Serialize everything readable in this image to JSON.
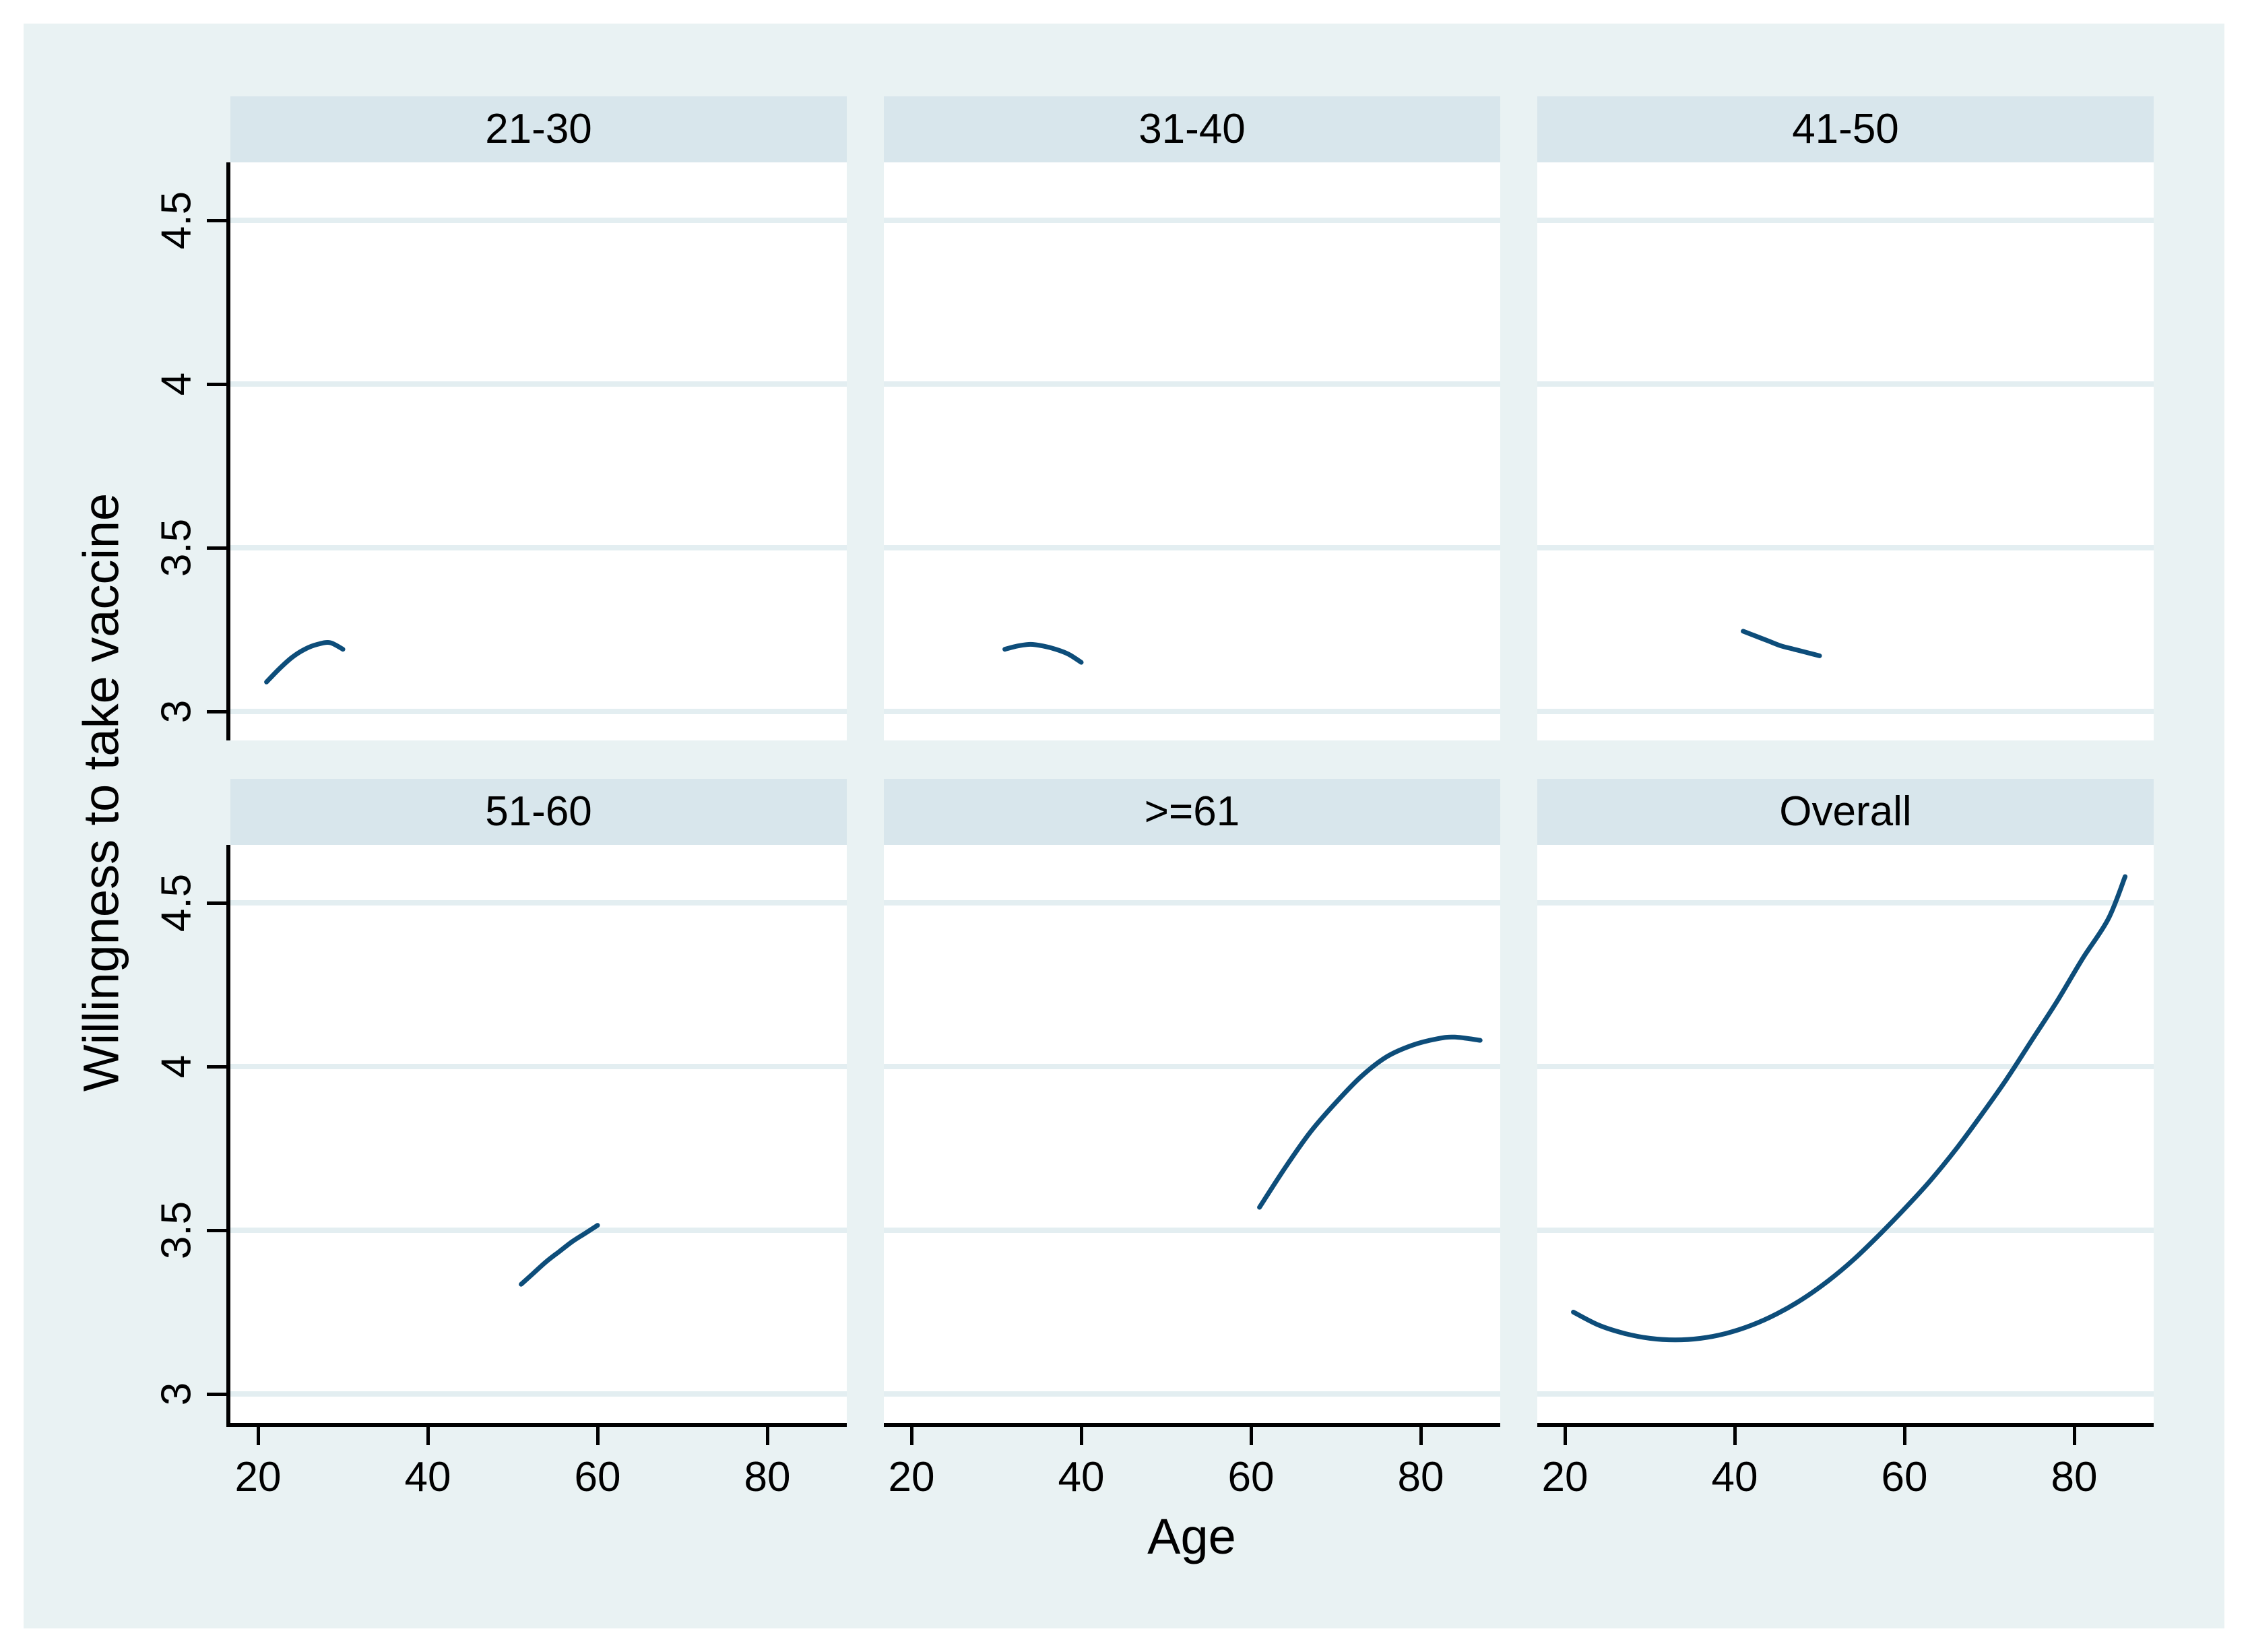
{
  "figure": {
    "xlabel": "Age",
    "ylabel": "Willingness to take vaccine",
    "colors": {
      "outer_background": "#e9f2f3",
      "facet_header_background": "#d8e6ec",
      "plot_background": "#ffffff",
      "gridline": "#e3eef1",
      "curve": "#0d4d7a",
      "axis": "#000000",
      "text": "#000000"
    }
  },
  "chart_data": {
    "type": "line",
    "layout": "faceted 2x3 grid (Stata by-graph), gridlines horizontal only, no legend",
    "title": "",
    "xlabel": "Age",
    "ylabel": "Willingness to take vaccine",
    "x": {
      "ticks": [
        20,
        40,
        60,
        80
      ],
      "tick_labels": [
        "20",
        "40",
        "60",
        "80"
      ],
      "range": [
        16.7,
        89.3
      ]
    },
    "y": {
      "ticks": [
        3,
        3.5,
        4,
        4.5
      ],
      "tick_labels": [
        "3",
        "3.5",
        "4",
        "4.5"
      ],
      "range": [
        2.91,
        4.68
      ]
    },
    "facets": [
      {
        "title": "21-30",
        "points": [
          [
            21,
            3.09
          ],
          [
            22.5,
            3.13
          ],
          [
            24,
            3.165
          ],
          [
            25.5,
            3.19
          ],
          [
            27,
            3.205
          ],
          [
            28.5,
            3.21
          ],
          [
            30,
            3.19
          ]
        ]
      },
      {
        "title": "31-40",
        "points": [
          [
            31,
            3.19
          ],
          [
            32.5,
            3.2
          ],
          [
            34,
            3.205
          ],
          [
            35.5,
            3.2
          ],
          [
            37,
            3.19
          ],
          [
            38.5,
            3.175
          ],
          [
            40,
            3.15
          ]
        ]
      },
      {
        "title": "41-50",
        "points": [
          [
            41,
            3.245
          ],
          [
            42.5,
            3.23
          ],
          [
            44,
            3.215
          ],
          [
            45.5,
            3.2
          ],
          [
            47,
            3.19
          ],
          [
            48.5,
            3.18
          ],
          [
            50,
            3.17
          ]
        ]
      },
      {
        "title": "51-60",
        "points": [
          [
            51,
            3.335
          ],
          [
            52.5,
            3.37
          ],
          [
            54,
            3.405
          ],
          [
            55.5,
            3.435
          ],
          [
            57,
            3.465
          ],
          [
            58.5,
            3.49
          ],
          [
            60,
            3.515
          ]
        ]
      },
      {
        "title": ">=61",
        "points": [
          [
            61,
            3.57
          ],
          [
            64,
            3.69
          ],
          [
            67,
            3.8
          ],
          [
            70,
            3.89
          ],
          [
            73,
            3.97
          ],
          [
            76,
            4.03
          ],
          [
            79,
            4.065
          ],
          [
            82,
            4.085
          ],
          [
            84,
            4.09
          ],
          [
            87,
            4.08
          ]
        ]
      },
      {
        "title": "Overall",
        "points": [
          [
            21,
            3.25
          ],
          [
            24,
            3.21
          ],
          [
            27,
            3.185
          ],
          [
            30,
            3.17
          ],
          [
            33,
            3.165
          ],
          [
            36,
            3.17
          ],
          [
            39,
            3.185
          ],
          [
            42,
            3.21
          ],
          [
            45,
            3.245
          ],
          [
            48,
            3.29
          ],
          [
            51,
            3.345
          ],
          [
            54,
            3.41
          ],
          [
            57,
            3.485
          ],
          [
            60,
            3.565
          ],
          [
            63,
            3.65
          ],
          [
            66,
            3.745
          ],
          [
            69,
            3.85
          ],
          [
            72,
            3.96
          ],
          [
            75,
            4.08
          ],
          [
            78,
            4.2
          ],
          [
            81,
            4.33
          ],
          [
            84,
            4.45
          ],
          [
            86,
            4.58
          ]
        ]
      }
    ]
  }
}
